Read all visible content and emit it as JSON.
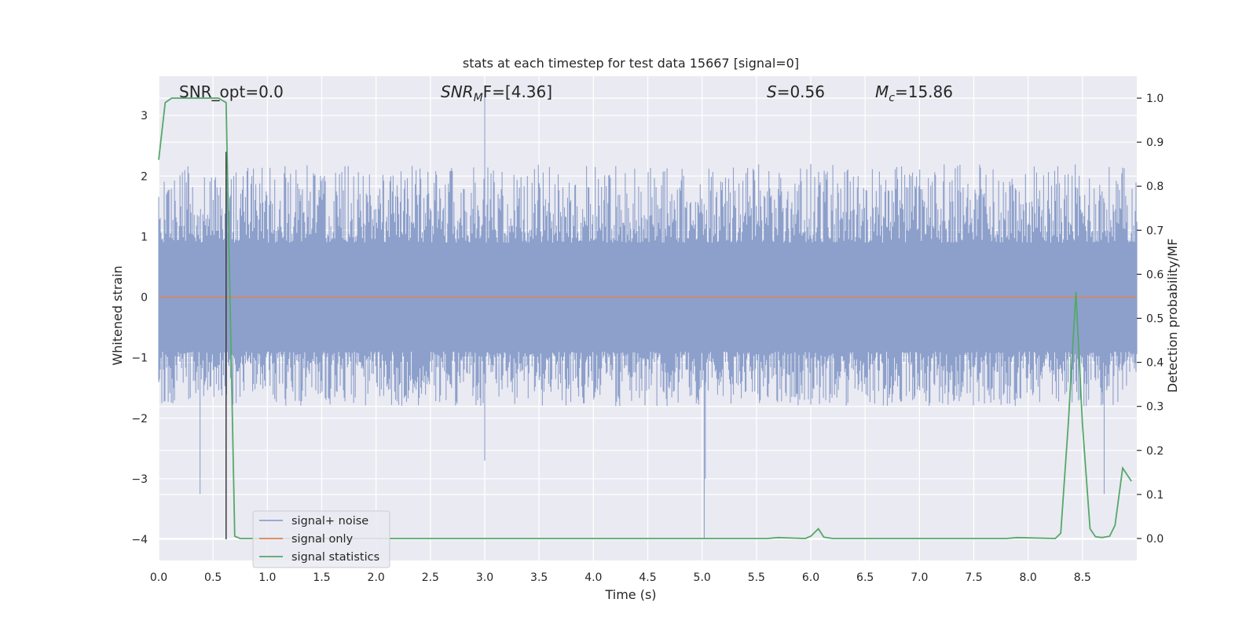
{
  "chart_data": {
    "type": "line",
    "title": "stats at each timestep for test data 15667 [signal=0]",
    "xlabel": "Time (s)",
    "ylabel_left": "Whitened strain",
    "ylabel_right": "Detection probability/MF",
    "xlim": [
      0.0,
      9.0
    ],
    "ylim_left": [
      -4.35,
      3.65
    ],
    "ylim_right": [
      -0.05,
      1.05
    ],
    "x_ticks": [
      "0.0",
      "0.5",
      "1.0",
      "1.5",
      "2.0",
      "2.5",
      "3.0",
      "3.5",
      "4.0",
      "4.5",
      "5.0",
      "5.5",
      "6.0",
      "6.5",
      "7.0",
      "7.5",
      "8.0",
      "8.5"
    ],
    "y_ticks_left": [
      "3",
      "2",
      "1",
      "0",
      "−1",
      "−2",
      "−3",
      "−4"
    ],
    "y_ticks_right": [
      "1.0",
      "0.9",
      "0.8",
      "0.7",
      "0.6",
      "0.5",
      "0.4",
      "0.3",
      "0.2",
      "0.1",
      "0.0"
    ],
    "grid": true,
    "legend_position": "lower-left",
    "annotations": {
      "snr_opt": "SNR_opt=0.0",
      "snr_mf_sym": "SNR",
      "snr_mf_sub": "M",
      "snr_mf_rest": "F=[4.36]",
      "s_sym": "S",
      "s_rest": "=0.56",
      "mc_sym": "M",
      "mc_sub": "c",
      "mc_rest": "=15.86"
    },
    "marker_line_x": 0.62,
    "series": [
      {
        "name": "signal+ noise",
        "color": "#8da0cb",
        "axis": "left",
        "description_values": {
          "typical_range": [
            -1.8,
            2.2
          ],
          "notable_spikes": [
            [
              0.38,
              -3.25
            ],
            [
              3.0,
              3.3
            ],
            [
              5.02,
              -4.0
            ],
            [
              5.03,
              -3.0
            ],
            [
              8.7,
              -3.25
            ],
            [
              3.0,
              -2.7
            ]
          ]
        }
      },
      {
        "name": "signal only",
        "color": "#dd8452",
        "axis": "left",
        "x": [
          0.0,
          9.0
        ],
        "y": [
          0.0,
          0.0
        ]
      },
      {
        "name": "signal statistics",
        "color": "#55a868",
        "axis": "right",
        "x": [
          0.0,
          0.06,
          0.12,
          0.2,
          0.3,
          0.4,
          0.5,
          0.55,
          0.62,
          0.7,
          0.75,
          0.8,
          1.0,
          2.0,
          3.0,
          4.0,
          5.0,
          5.6,
          5.7,
          5.95,
          6.0,
          6.07,
          6.12,
          6.2,
          7.0,
          7.5,
          7.8,
          7.9,
          8.25,
          8.3,
          8.37,
          8.44,
          8.5,
          8.57,
          8.62,
          8.68,
          8.75,
          8.8,
          8.87,
          8.95
        ],
        "y": [
          0.86,
          0.99,
          1.0,
          1.0,
          1.0,
          1.0,
          1.0,
          1.0,
          0.99,
          0.005,
          0.0,
          0.0,
          0.0,
          0.0,
          0.0,
          0.0,
          0.0,
          0.0,
          0.002,
          0.0,
          0.005,
          0.022,
          0.003,
          0.0,
          0.0,
          0.0,
          0.0,
          0.002,
          0.0,
          0.012,
          0.26,
          0.56,
          0.26,
          0.022,
          0.004,
          0.002,
          0.005,
          0.03,
          0.16,
          0.13
        ]
      }
    ]
  }
}
